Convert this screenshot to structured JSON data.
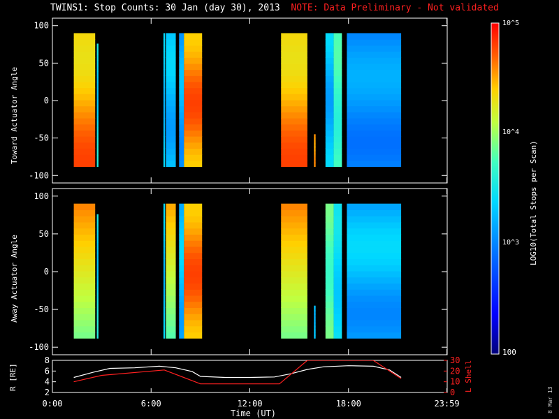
{
  "title": {
    "main": "TWINS1: Stop Counts: 30 Jan (day  30), 2013",
    "note": "NOTE: Data Preliminary - Not validated",
    "note_color": "#ff2020"
  },
  "datestamp": "8 Mar 13",
  "colorbar": {
    "label": "LOG10(Total Stops per Scan)",
    "ticks": [
      "10^5",
      "10^4",
      "10^3",
      "100"
    ],
    "min": 100,
    "max": 100000
  },
  "chart_data": [
    {
      "type": "heatmap",
      "panel": "toward",
      "ylabel": "Toward Actuator Angle",
      "ylim": [
        -110,
        110
      ],
      "yticks": [
        100,
        50,
        0,
        -50,
        -100
      ],
      "xlim": [
        0,
        24
      ],
      "value_units": "log10 counts",
      "segments": [
        {
          "t0": 1.3,
          "t1": 2.6,
          "y0": -88,
          "y1": 90,
          "low": 4.3,
          "high": 4.8,
          "style": "rising"
        },
        {
          "t0": 2.7,
          "t1": 2.8,
          "y0": -88,
          "y1": 76,
          "low": 3.3,
          "high": 3.6,
          "style": "flat"
        },
        {
          "t0": 6.75,
          "t1": 6.85,
          "y0": -88,
          "y1": 90,
          "low": 3.2,
          "high": 3.4,
          "style": "flat"
        },
        {
          "t0": 6.9,
          "t1": 7.5,
          "y0": -88,
          "y1": 90,
          "low": 3.1,
          "high": 3.4,
          "style": "flat"
        },
        {
          "t0": 7.7,
          "t1": 8.0,
          "y0": -88,
          "y1": 90,
          "low": 3.0,
          "high": 3.3,
          "style": "flat"
        },
        {
          "t0": 8.0,
          "t1": 9.1,
          "y0": -88,
          "y1": 90,
          "low": 4.4,
          "high": 4.8,
          "style": "flat"
        },
        {
          "t0": 13.9,
          "t1": 15.5,
          "y0": -88,
          "y1": 90,
          "low": 4.3,
          "high": 4.8,
          "style": "rising"
        },
        {
          "t0": 15.9,
          "t1": 16.0,
          "y0": -88,
          "y1": -45,
          "low": 4.5,
          "high": 4.6,
          "style": "flat"
        },
        {
          "t0": 16.6,
          "t1": 17.1,
          "y0": -88,
          "y1": 90,
          "low": 3.1,
          "high": 3.4,
          "style": "flat"
        },
        {
          "t0": 17.1,
          "t1": 17.6,
          "y0": -88,
          "y1": 90,
          "low": 3.6,
          "high": 3.8,
          "style": "flat"
        },
        {
          "t0": 17.9,
          "t1": 21.2,
          "y0": -88,
          "y1": 90,
          "low": 2.9,
          "high": 3.2,
          "style": "flat"
        }
      ]
    },
    {
      "type": "heatmap",
      "panel": "away",
      "ylabel": "Away Actuator Angle",
      "ylim": [
        -110,
        110
      ],
      "yticks": [
        100,
        50,
        0,
        -50,
        -100
      ],
      "xlim": [
        0,
        24
      ],
      "value_units": "log10 counts",
      "segments": [
        {
          "t0": 1.3,
          "t1": 2.6,
          "y0": -88,
          "y1": 90,
          "low": 3.9,
          "high": 4.6,
          "style": "falling"
        },
        {
          "t0": 2.7,
          "t1": 2.8,
          "y0": -88,
          "y1": 76,
          "low": 3.3,
          "high": 3.6,
          "style": "flat"
        },
        {
          "t0": 6.75,
          "t1": 6.85,
          "y0": -88,
          "y1": 90,
          "low": 3.2,
          "high": 3.4,
          "style": "flat"
        },
        {
          "t0": 6.9,
          "t1": 7.5,
          "y0": -88,
          "y1": 90,
          "low": 3.8,
          "high": 4.5,
          "style": "falling"
        },
        {
          "t0": 7.7,
          "t1": 8.0,
          "y0": -88,
          "y1": 90,
          "low": 3.1,
          "high": 3.4,
          "style": "flat"
        },
        {
          "t0": 8.0,
          "t1": 9.1,
          "y0": -88,
          "y1": 90,
          "low": 4.4,
          "high": 4.8,
          "style": "flat"
        },
        {
          "t0": 13.9,
          "t1": 15.5,
          "y0": -88,
          "y1": 90,
          "low": 3.9,
          "high": 4.6,
          "style": "falling"
        },
        {
          "t0": 15.9,
          "t1": 16.0,
          "y0": -88,
          "y1": -45,
          "low": 3.2,
          "high": 3.3,
          "style": "flat"
        },
        {
          "t0": 16.6,
          "t1": 17.1,
          "y0": -88,
          "y1": 90,
          "low": 3.7,
          "high": 3.9,
          "style": "flat"
        },
        {
          "t0": 17.1,
          "t1": 17.6,
          "y0": -88,
          "y1": 90,
          "low": 3.3,
          "high": 3.5,
          "style": "flat"
        },
        {
          "t0": 17.9,
          "t1": 21.2,
          "y0": -88,
          "y1": 90,
          "low": 3.0,
          "high": 3.4,
          "style": "flat"
        }
      ]
    },
    {
      "type": "line",
      "panel": "orbit",
      "xlabel": "Time (UT)",
      "xticks": [
        "0:00",
        "6:00",
        "12:00",
        "18:00",
        "23:59"
      ],
      "xtick_hours": [
        0,
        6,
        12,
        18,
        23.98
      ],
      "left_axis": {
        "label": "R [RE]",
        "ticks": [
          2,
          4,
          6,
          8
        ],
        "ylim": [
          2,
          8
        ]
      },
      "right_axis": {
        "label": "L Shell",
        "ticks": [
          0,
          10,
          20,
          30
        ],
        "ylim": [
          0,
          30
        ],
        "color": "#ff2020"
      },
      "series": [
        {
          "axis": "left",
          "color": "#ffffff",
          "x": [
            1.3,
            2.5,
            3.5,
            5.0,
            6.5,
            7.5,
            8.5,
            9.0,
            10.5,
            12.0,
            13.5,
            14.5,
            15.5,
            16.5,
            18.0,
            19.5,
            20.5,
            21.2
          ],
          "y": [
            4.8,
            5.8,
            6.5,
            6.6,
            6.9,
            6.6,
            5.9,
            5.0,
            4.8,
            4.8,
            4.9,
            5.5,
            6.3,
            6.8,
            7.0,
            6.9,
            6.2,
            4.8
          ]
        },
        {
          "axis": "right",
          "color": "#ff2020",
          "x": [
            1.3,
            3.0,
            6.8,
            9.0,
            13.8,
            15.5,
            19.5,
            21.2
          ],
          "y": [
            10,
            16,
            21,
            8,
            8,
            30,
            30,
            13
          ]
        }
      ]
    }
  ]
}
